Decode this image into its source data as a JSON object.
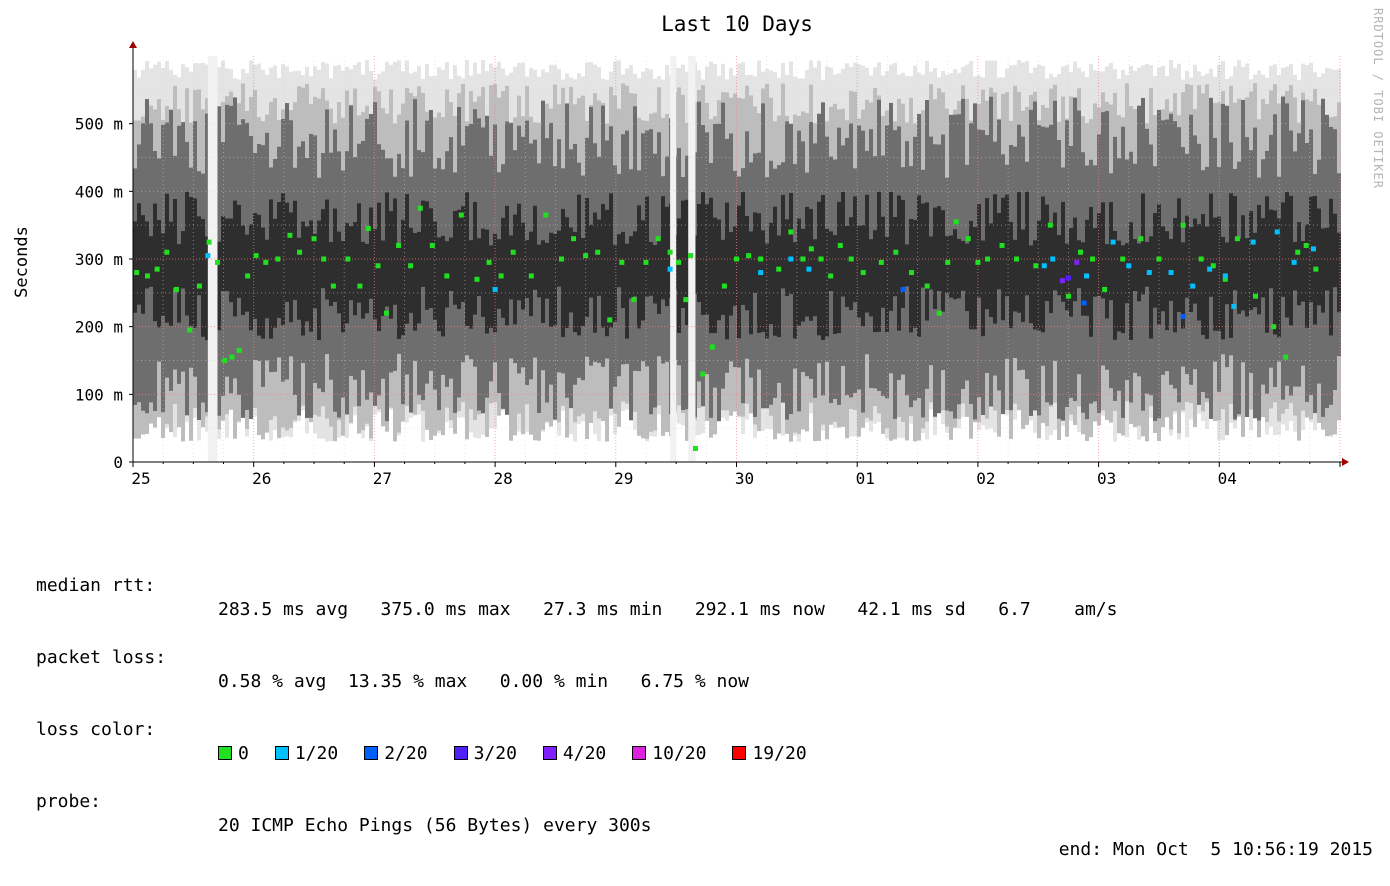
{
  "chart_data": {
    "type": "scatter",
    "title": "Last 10 Days",
    "ylabel": "Seconds",
    "watermark": "RRDTOOL / TOBI OETIKER",
    "x_ticks": [
      "25",
      "26",
      "27",
      "28",
      "29",
      "30",
      "01",
      "02",
      "03",
      "04"
    ],
    "x_range_days": [
      0,
      10
    ],
    "y_ticks": [
      {
        "value": 0,
        "label": "0"
      },
      {
        "value": 0.1,
        "label": "100 m"
      },
      {
        "value": 0.2,
        "label": "200 m"
      },
      {
        "value": 0.3,
        "label": "300 m"
      },
      {
        "value": 0.4,
        "label": "400 m"
      },
      {
        "value": 0.5,
        "label": "500 m"
      }
    ],
    "ylim": [
      0,
      0.6
    ],
    "grid": true,
    "series": [
      {
        "name": "0",
        "color": "#20e020",
        "x": [
          0.03,
          0.12,
          0.2,
          0.28,
          0.36,
          0.47,
          0.55,
          0.63,
          0.7,
          0.76,
          0.82,
          0.88,
          0.95,
          1.02,
          1.1,
          1.2,
          1.3,
          1.38,
          1.5,
          1.58,
          1.66,
          1.78,
          1.88,
          1.95,
          2.03,
          2.1,
          2.2,
          2.3,
          2.38,
          2.48,
          2.6,
          2.72,
          2.85,
          2.95,
          3.05,
          3.15,
          3.3,
          3.42,
          3.55,
          3.65,
          3.75,
          3.85,
          3.95,
          4.05,
          4.15,
          4.25,
          4.35,
          4.45,
          4.52,
          4.58,
          4.62,
          4.66,
          4.72,
          4.8,
          4.9,
          5.0,
          5.1,
          5.2,
          5.35,
          5.45,
          5.55,
          5.62,
          5.7,
          5.78,
          5.86,
          5.95,
          6.05,
          6.2,
          6.32,
          6.45,
          6.58,
          6.68,
          6.75,
          6.82,
          6.92,
          7.0,
          7.08,
          7.2,
          7.32,
          7.48,
          7.6,
          7.75,
          7.85,
          7.95,
          8.05,
          8.2,
          8.35,
          8.5,
          8.7,
          8.85,
          8.95,
          9.05,
          9.15,
          9.3,
          9.45,
          9.55,
          9.65,
          9.72,
          9.8
        ],
        "y": [
          0.28,
          0.275,
          0.285,
          0.31,
          0.255,
          0.195,
          0.26,
          0.325,
          0.295,
          0.15,
          0.155,
          0.165,
          0.275,
          0.305,
          0.295,
          0.3,
          0.335,
          0.31,
          0.33,
          0.3,
          0.26,
          0.3,
          0.26,
          0.345,
          0.29,
          0.22,
          0.32,
          0.29,
          0.375,
          0.32,
          0.275,
          0.365,
          0.27,
          0.295,
          0.275,
          0.31,
          0.275,
          0.365,
          0.3,
          0.33,
          0.305,
          0.31,
          0.21,
          0.295,
          0.24,
          0.295,
          0.33,
          0.31,
          0.295,
          0.24,
          0.305,
          0.02,
          0.13,
          0.17,
          0.26,
          0.3,
          0.305,
          0.3,
          0.285,
          0.34,
          0.3,
          0.315,
          0.3,
          0.275,
          0.32,
          0.3,
          0.28,
          0.295,
          0.31,
          0.28,
          0.26,
          0.22,
          0.295,
          0.355,
          0.33,
          0.295,
          0.3,
          0.32,
          0.3,
          0.29,
          0.35,
          0.245,
          0.31,
          0.3,
          0.255,
          0.3,
          0.33,
          0.3,
          0.35,
          0.3,
          0.29,
          0.27,
          0.33,
          0.245,
          0.2,
          0.155,
          0.31,
          0.32,
          0.285
        ],
        "points_shown": "sample of median RTT points"
      },
      {
        "name": "1/20",
        "color": "#00c0ff",
        "x": [
          0.62,
          3.0,
          4.45,
          5.2,
          5.45,
          5.6,
          7.55,
          7.62,
          7.9,
          8.12,
          8.25,
          8.42,
          8.6,
          8.78,
          8.92,
          9.05,
          9.12,
          9.28,
          9.48,
          9.62,
          9.78
        ],
        "y": [
          0.305,
          0.255,
          0.285,
          0.28,
          0.3,
          0.285,
          0.29,
          0.3,
          0.275,
          0.325,
          0.29,
          0.28,
          0.28,
          0.26,
          0.285,
          0.275,
          0.23,
          0.325,
          0.34,
          0.295,
          0.315
        ]
      },
      {
        "name": "2/20",
        "color": "#0060ff",
        "x": [
          6.38,
          7.88,
          8.7
        ],
        "y": [
          0.255,
          0.235,
          0.215
        ]
      },
      {
        "name": "3/20",
        "color": "#5020ff",
        "x": [
          7.75
        ],
        "y": [
          0.272
        ]
      },
      {
        "name": "4/20",
        "color": "#8020ff",
        "x": [
          7.7,
          7.82
        ],
        "y": [
          0.268,
          0.295
        ]
      }
    ]
  },
  "stats": {
    "median_rtt": {
      "label": "median rtt:",
      "values": "283.5 ms avg   375.0 ms max   27.3 ms min   292.1 ms now   42.1 ms sd   6.7    am/s"
    },
    "packet_loss": {
      "label": "packet loss:",
      "values": "0.58 % avg  13.35 % max   0.00 % min   6.75 % now"
    },
    "loss_color": {
      "label": "loss color:",
      "items": [
        {
          "label": "0",
          "color": "#20e020"
        },
        {
          "label": "1/20",
          "color": "#00c0ff"
        },
        {
          "label": "2/20",
          "color": "#0060ff"
        },
        {
          "label": "3/20",
          "color": "#5020ff"
        },
        {
          "label": "4/20",
          "color": "#8020ff"
        },
        {
          "label": "10/20",
          "color": "#e020e0"
        },
        {
          "label": "19/20",
          "color": "#ff0000"
        }
      ]
    },
    "probe": {
      "label": "probe:",
      "value": "20 ICMP Echo Pings (56 Bytes) every 300s",
      "end": "end: Mon Oct  5 10:56:19 2015"
    }
  }
}
